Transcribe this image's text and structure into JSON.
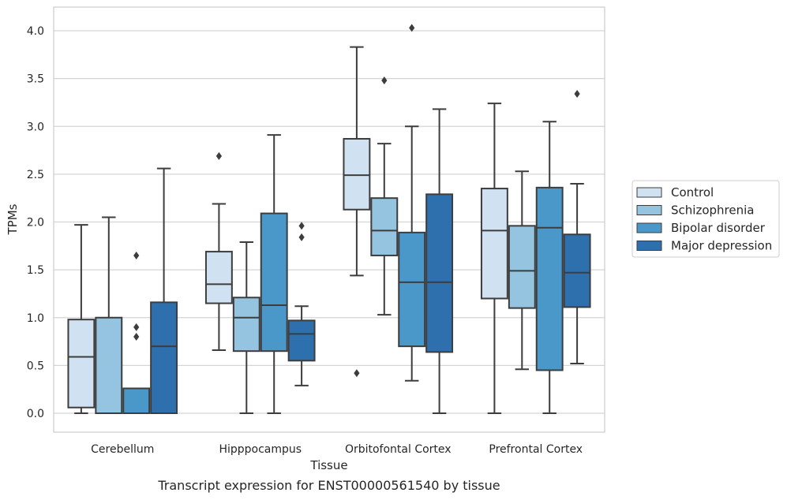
{
  "chart_data": {
    "type": "box",
    "xlabel": "Tissue",
    "ylabel": "TPMs",
    "caption": "Transcript expression for ENST00000561540 by tissue",
    "ylim": [
      -0.2,
      4.25
    ],
    "yticks": [
      "0.0",
      "0.5",
      "1.0",
      "1.5",
      "2.0",
      "2.5",
      "3.0",
      "3.5",
      "4.0"
    ],
    "grid": true,
    "legend_position": "right",
    "categories": [
      "Cerebellum",
      "Hipppocampus",
      "Orbitofontal Cortex",
      "Prefrontal Cortex"
    ],
    "series": [
      {
        "name": "Control",
        "color": "#d0e1f2",
        "boxes": [
          {
            "whislo": 0.0,
            "q1": 0.06,
            "med": 0.59,
            "q3": 0.98,
            "whishi": 1.97,
            "fliers": []
          },
          {
            "whislo": 0.66,
            "q1": 1.15,
            "med": 1.35,
            "q3": 1.69,
            "whishi": 2.19,
            "fliers": [
              2.69
            ]
          },
          {
            "whislo": 1.44,
            "q1": 2.13,
            "med": 2.49,
            "q3": 2.87,
            "whishi": 3.83,
            "fliers": [
              0.42
            ]
          },
          {
            "whislo": 0.0,
            "q1": 1.2,
            "med": 1.91,
            "q3": 2.35,
            "whishi": 3.24,
            "fliers": []
          }
        ]
      },
      {
        "name": "Schizophrenia",
        "color": "#94c4df",
        "boxes": [
          {
            "whislo": 0.0,
            "q1": 0.0,
            "med": 0.0,
            "q3": 1.0,
            "whishi": 2.05,
            "fliers": []
          },
          {
            "whislo": 0.0,
            "q1": 0.65,
            "med": 1.0,
            "q3": 1.21,
            "whishi": 1.79,
            "fliers": []
          },
          {
            "whislo": 1.03,
            "q1": 1.65,
            "med": 1.91,
            "q3": 2.25,
            "whishi": 2.82,
            "fliers": [
              3.48
            ]
          },
          {
            "whislo": 0.46,
            "q1": 1.1,
            "med": 1.49,
            "q3": 1.96,
            "whishi": 2.53,
            "fliers": []
          }
        ]
      },
      {
        "name": "Bipolar disorder",
        "color": "#4a98c9",
        "boxes": [
          {
            "whislo": 0.0,
            "q1": 0.0,
            "med": 0.0,
            "q3": 0.26,
            "whishi": 0.26,
            "fliers": [
              0.8,
              0.9,
              1.65
            ]
          },
          {
            "whislo": 0.0,
            "q1": 0.65,
            "med": 1.13,
            "q3": 2.09,
            "whishi": 2.91,
            "fliers": []
          },
          {
            "whislo": 0.34,
            "q1": 0.7,
            "med": 1.37,
            "q3": 1.89,
            "whishi": 3.0,
            "fliers": [
              4.03
            ]
          },
          {
            "whislo": 0.0,
            "q1": 0.45,
            "med": 1.94,
            "q3": 2.36,
            "whishi": 3.05,
            "fliers": []
          }
        ]
      },
      {
        "name": "Major depression",
        "color": "#2e6fad",
        "boxes": [
          {
            "whislo": 0.0,
            "q1": 0.0,
            "med": 0.7,
            "q3": 1.16,
            "whishi": 2.56,
            "fliers": []
          },
          {
            "whislo": 0.29,
            "q1": 0.55,
            "med": 0.83,
            "q3": 0.97,
            "whishi": 1.12,
            "fliers": [
              1.84,
              1.96
            ]
          },
          {
            "whislo": 0.0,
            "q1": 0.64,
            "med": 1.37,
            "q3": 2.29,
            "whishi": 3.18,
            "fliers": []
          },
          {
            "whislo": 0.52,
            "q1": 1.11,
            "med": 1.47,
            "q3": 1.87,
            "whishi": 2.4,
            "fliers": [
              3.34
            ]
          }
        ]
      }
    ]
  }
}
